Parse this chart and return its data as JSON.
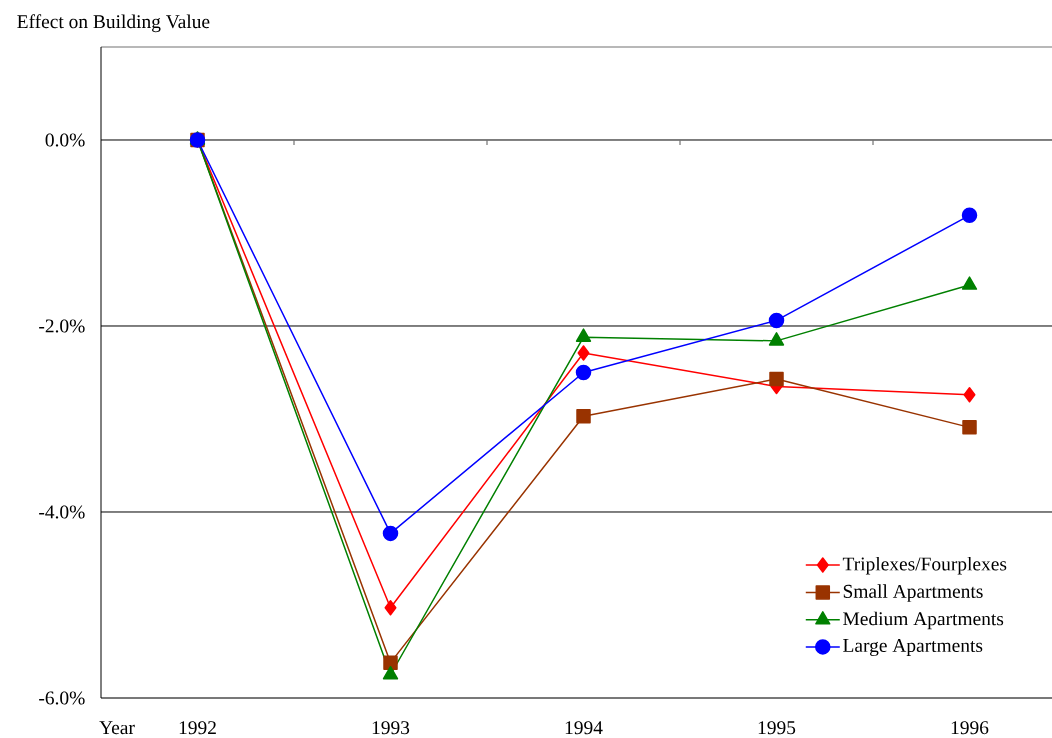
{
  "chart_data": {
    "type": "line",
    "ylabel": "Effect on Building Value",
    "xlabel": "Year",
    "categories": [
      "1992",
      "1993",
      "1994",
      "1995",
      "1996"
    ],
    "series": [
      {
        "name": "Triplexes/Fourplexes",
        "color": "#ff0000",
        "marker": "diamond",
        "values": [
          0,
          -5.03,
          -2.29,
          -2.65,
          -2.74
        ]
      },
      {
        "name": "Small Apartments",
        "color": "#993300",
        "marker": "square",
        "values": [
          0,
          -5.62,
          -2.97,
          -2.57,
          -3.09
        ]
      },
      {
        "name": "Medium Apartments",
        "color": "#008000",
        "marker": "triangle",
        "values": [
          0,
          -5.75,
          -2.12,
          -2.16,
          -1.56
        ]
      },
      {
        "name": "Large Apartments",
        "color": "#0000ff",
        "marker": "circle",
        "values": [
          0,
          -4.23,
          -2.5,
          -1.94,
          -0.81
        ]
      }
    ],
    "ylim": [
      -6,
      1
    ],
    "yticks": [
      {
        "value": -6,
        "label": "-6.0%"
      },
      {
        "value": -4,
        "label": "-4.0%"
      },
      {
        "value": -2,
        "label": "-2.0%"
      },
      {
        "value": 0,
        "label": "0.0%"
      }
    ],
    "grid": "y",
    "legend": "bottom right",
    "line_style": "solid"
  }
}
